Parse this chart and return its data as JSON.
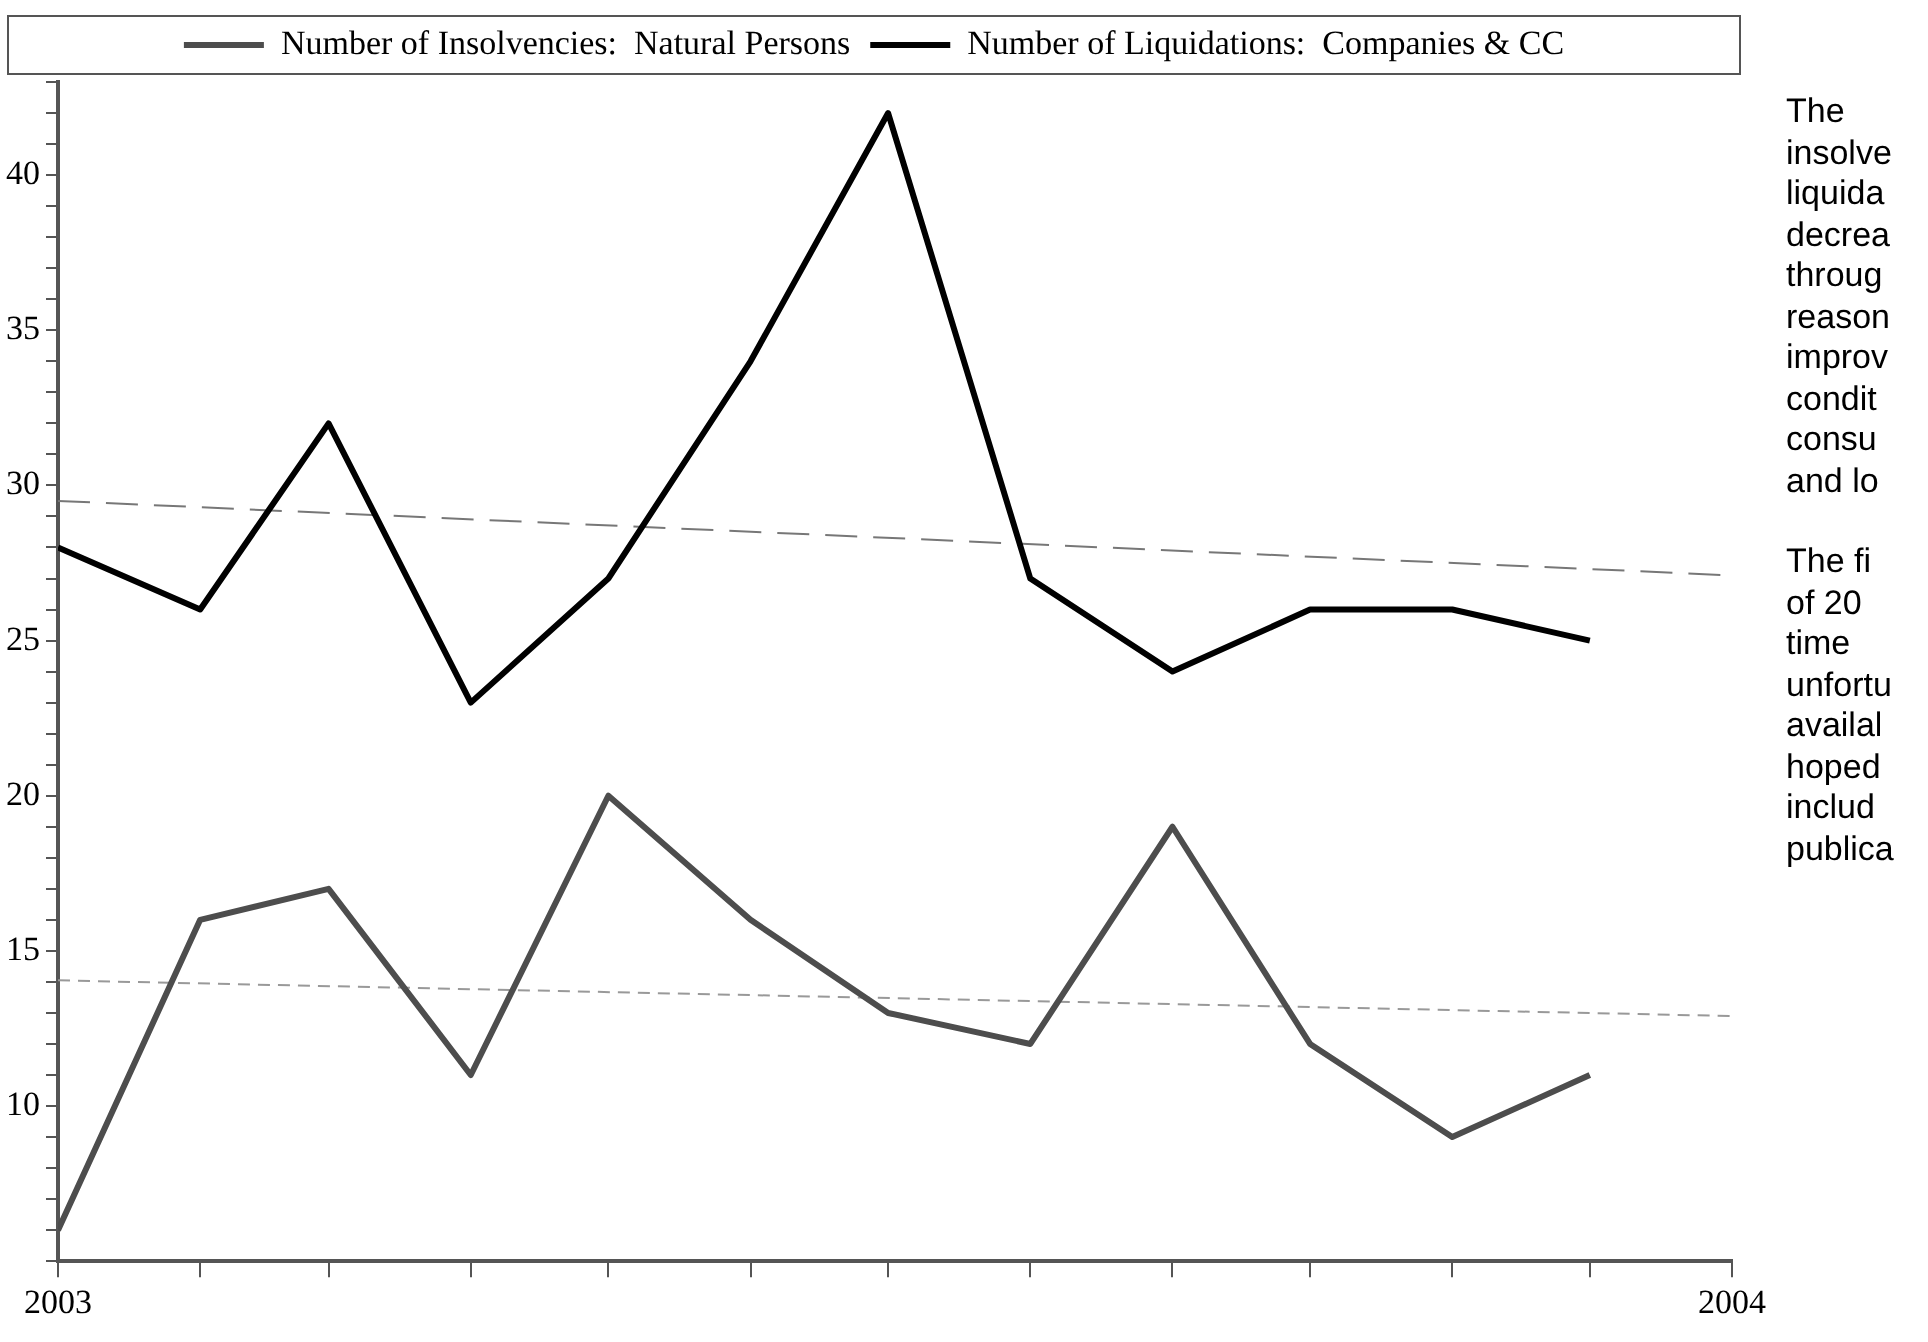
{
  "chart_data": {
    "type": "line",
    "x": [
      "2003-01",
      "2003-02",
      "2003-03",
      "2003-04",
      "2003-05",
      "2003-06",
      "2003-07",
      "2003-08",
      "2003-09",
      "2003-10",
      "2003-11",
      "2003-12"
    ],
    "series": [
      {
        "name": "Number of Insolvencies:  Natural Persons",
        "color": "#4d4d4d",
        "values": [
          6,
          16,
          17,
          11,
          20,
          16,
          13,
          12,
          19,
          12,
          9,
          11
        ]
      },
      {
        "name": "Number of Liquidations:  Companies & CC",
        "color": "#000000",
        "values": [
          28,
          26,
          32,
          23,
          27,
          34,
          42,
          27,
          24,
          26,
          26,
          25
        ]
      },
      {
        "type": "line",
        "color": "#777777",
        "line_style": "dashed",
        "x": [
          "2003-01",
          "2004-01"
        ],
        "values": [
          29.5,
          27.1
        ]
      },
      {
        "type": "line",
        "color": "#999999",
        "line_style": "dotted",
        "x": [
          "2003-01",
          "2004-01"
        ],
        "values": [
          14.05,
          12.9
        ]
      }
    ],
    "xlim": [
      "2003-01",
      "2004-01"
    ],
    "xticks": [
      {
        "value": "2003-01",
        "label": "2003"
      },
      {
        "value": "2003-02",
        "label": null
      },
      {
        "value": "2003-03",
        "label": null
      },
      {
        "value": "2003-04",
        "label": null
      },
      {
        "value": "2003-05",
        "label": null
      },
      {
        "value": "2003-06",
        "label": null
      },
      {
        "value": "2003-07",
        "label": null
      },
      {
        "value": "2003-08",
        "label": null
      },
      {
        "value": "2003-09",
        "label": null
      },
      {
        "value": "2003-10",
        "label": null
      },
      {
        "value": "2003-11",
        "label": null
      },
      {
        "value": "2003-12",
        "label": null
      },
      {
        "value": "2004-01",
        "label": "2004"
      }
    ],
    "ylim": [
      5,
      43
    ],
    "yticks": [
      {
        "value": 5,
        "label": null
      },
      {
        "value": 6,
        "label": null
      },
      {
        "value": 7,
        "label": null
      },
      {
        "value": 8,
        "label": null
      },
      {
        "value": 9,
        "label": null
      },
      10,
      {
        "value": 11,
        "label": null
      },
      {
        "value": 12,
        "label": null
      },
      {
        "value": 13,
        "label": null
      },
      {
        "value": 14,
        "label": null
      },
      15,
      {
        "value": 16,
        "label": null
      },
      {
        "value": 17,
        "label": null
      },
      {
        "value": 18,
        "label": null
      },
      {
        "value": 19,
        "label": null
      },
      20,
      {
        "value": 21,
        "label": null
      },
      {
        "value": 22,
        "label": null
      },
      {
        "value": 23,
        "label": null
      },
      {
        "value": 24,
        "label": null
      },
      25,
      {
        "value": 26,
        "label": null
      },
      {
        "value": 27,
        "label": null
      },
      {
        "value": 28,
        "label": null
      },
      {
        "value": 29,
        "label": null
      },
      30,
      {
        "value": 31,
        "label": null
      },
      {
        "value": 32,
        "label": null
      },
      {
        "value": 33,
        "label": null
      },
      {
        "value": 34,
        "label": null
      },
      35,
      {
        "value": 36,
        "label": null
      },
      {
        "value": 37,
        "label": null
      },
      {
        "value": 38,
        "label": null
      },
      {
        "value": 39,
        "label": null
      },
      40,
      {
        "value": 41,
        "label": null
      },
      {
        "value": 42,
        "label": null
      },
      {
        "value": 43,
        "label": null
      }
    ],
    "grid": false,
    "legend": "top",
    "marker": "none",
    "line_style": "solid",
    "annotations": [
      "The\ninsolve\nliquida\ndecrea\nthroug\nreason\nimprov\ncondit\nconsu\nand lo",
      "The fi\nof 20\ntime\nunfortu\navailal\nhoped\ninclud\npublica"
    ]
  }
}
